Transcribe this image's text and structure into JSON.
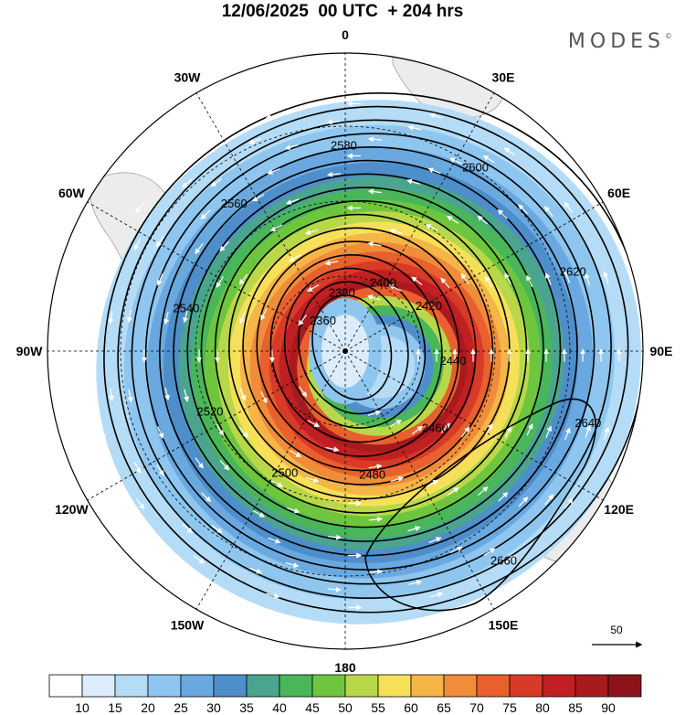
{
  "header": {
    "title": "12/06/2025  00 UTC  + 204 hrs",
    "brand": "MODES",
    "brand_mark": "©"
  },
  "map": {
    "projection": "south-polar-stereographic",
    "longitude_labels": [
      {
        "text": "0",
        "lon": 0
      },
      {
        "text": "30E",
        "lon": 30
      },
      {
        "text": "60E",
        "lon": 60
      },
      {
        "text": "90E",
        "lon": 90
      },
      {
        "text": "120E",
        "lon": 120
      },
      {
        "text": "150E",
        "lon": 150
      },
      {
        "text": "180",
        "lon": 180
      },
      {
        "text": "150W",
        "lon": -150
      },
      {
        "text": "120W",
        "lon": -120
      },
      {
        "text": "90W",
        "lon": -90
      },
      {
        "text": "60W",
        "lon": -60
      },
      {
        "text": "30W",
        "lon": -30
      }
    ],
    "contour_labels": [
      "2360",
      "2380",
      "2400",
      "2420",
      "2440",
      "2460",
      "2480",
      "2500",
      "2520",
      "2540",
      "2560",
      "2580",
      "2600",
      "2620",
      "2640",
      "2660"
    ],
    "reference_vector": {
      "label": "50"
    }
  },
  "colorbar": {
    "ticks": [
      "10",
      "15",
      "20",
      "25",
      "30",
      "35",
      "40",
      "45",
      "50",
      "55",
      "60",
      "65",
      "70",
      "75",
      "80",
      "85",
      "90"
    ],
    "colors": [
      "#ffffff",
      "#dcecfb",
      "#b4dcf7",
      "#8ec6ef",
      "#6aa9e0",
      "#4e8ecb",
      "#4ba58e",
      "#4ab65a",
      "#6ec63f",
      "#b8d84a",
      "#f6e05a",
      "#f5b547",
      "#f08c3a",
      "#e8602d",
      "#d83a28",
      "#c02022",
      "#a81a1e",
      "#8c1418"
    ]
  }
}
